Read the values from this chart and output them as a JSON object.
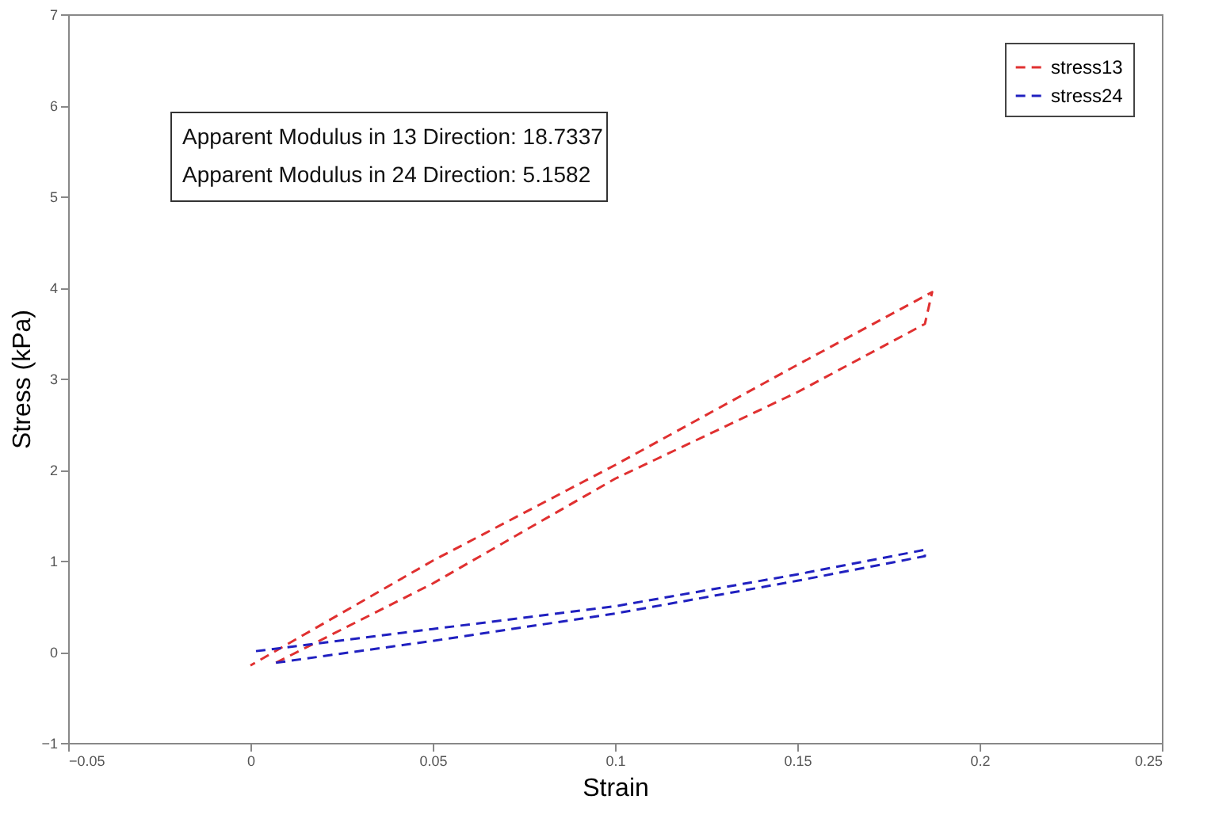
{
  "chart_data": {
    "type": "line",
    "xlabel": "Strain",
    "ylabel": "Stress (kPa)",
    "series": [
      {
        "name": "stress13",
        "color": "#e03030",
        "x": [
          0.007,
          0.05,
          0.1,
          0.15,
          0.185,
          0.187,
          0.15,
          0.1,
          0.05,
          0.0
        ],
        "values": [
          -0.12,
          0.75,
          1.9,
          2.85,
          3.6,
          3.95,
          3.15,
          2.05,
          1.0,
          -0.15
        ]
      },
      {
        "name": "stress24",
        "color": "#2020c0",
        "x": [
          0.007,
          0.05,
          0.1,
          0.15,
          0.185,
          0.185,
          0.15,
          0.1,
          0.05,
          0.0
        ],
        "values": [
          -0.12,
          0.12,
          0.42,
          0.78,
          1.05,
          1.12,
          0.85,
          0.5,
          0.25,
          0.0
        ]
      }
    ],
    "xlim": [
      -0.05,
      0.25
    ],
    "xticks": [
      -0.05,
      0,
      0.05,
      0.1,
      0.15,
      0.2,
      0.25
    ],
    "ylim": [
      -1,
      7
    ],
    "yticks": [
      -1,
      0,
      1,
      2,
      3,
      4,
      5,
      6,
      7
    ],
    "line_style": "dashed",
    "marker": "none",
    "grid": false,
    "legend": "top right",
    "annotations": [
      "Apparent Modulus in 13 Direction: 18.7337",
      "Apparent Modulus in 24 Direction: 5.1582"
    ]
  }
}
